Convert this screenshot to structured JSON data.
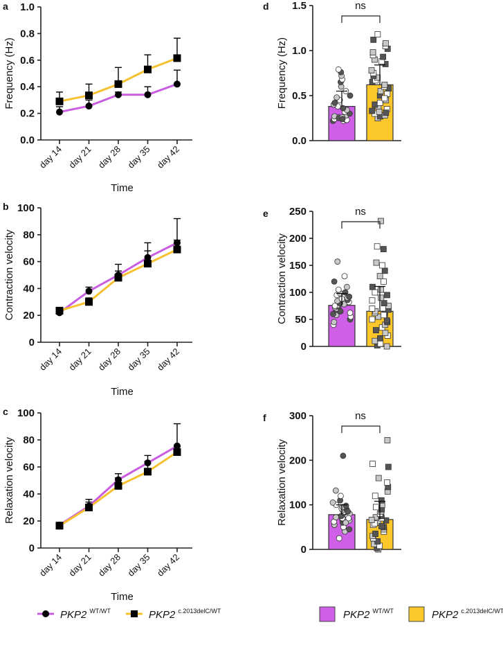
{
  "colors": {
    "wt": "#c95de0",
    "mut": "#f5c12e",
    "wt_fill": "#cf5fe6",
    "mut_fill": "#fcc72a",
    "white_pt": "#ffffff",
    "light_pt": "#c8c8c8",
    "dark_pt": "#555555"
  },
  "legend": {
    "wt_name": "PKP2",
    "wt_sup": "WT/WT",
    "mut_name": "PKP2",
    "mut_sup": "c.2013delC/WT"
  },
  "chart_data": [
    {
      "id": "a",
      "type": "line",
      "panel_label": "a",
      "xlabel": "Time",
      "ylabel": "Frequency (Hz)",
      "categories": [
        "day 14",
        "day 21",
        "day 28",
        "day 35",
        "day 42"
      ],
      "ylim": [
        0,
        1.0
      ],
      "yticks": [
        "0.0",
        "0.2",
        "0.4",
        "0.6",
        "0.8",
        "1.0"
      ],
      "ytick_values": [
        0,
        0.2,
        0.4,
        0.6,
        0.8,
        1.0
      ],
      "series": [
        {
          "name": "PKP2 WT/WT",
          "marker": "circle",
          "values": [
            0.21,
            0.255,
            0.34,
            0.34,
            0.42
          ],
          "err_upper": [
            0.25,
            0.3,
            0.36,
            0.4,
            0.525
          ]
        },
        {
          "name": "PKP2 c.2013delC/WT",
          "marker": "square",
          "values": [
            0.29,
            0.335,
            0.42,
            0.53,
            0.615
          ],
          "err_upper": [
            0.36,
            0.42,
            0.545,
            0.64,
            0.765
          ]
        }
      ]
    },
    {
      "id": "b",
      "type": "line",
      "panel_label": "b",
      "xlabel": "Time",
      "ylabel": "Contraction velocity",
      "categories": [
        "day 14",
        "day 21",
        "day 28",
        "day 35",
        "day 42"
      ],
      "ylim": [
        0,
        100
      ],
      "yticks": [
        "0",
        "20",
        "40",
        "60",
        "80",
        "100"
      ],
      "ytick_values": [
        0,
        20,
        40,
        60,
        80,
        100
      ],
      "series": [
        {
          "name": "PKP2 WT/WT",
          "marker": "circle",
          "values": [
            22,
            38,
            50,
            63,
            74
          ],
          "err_upper": [
            24,
            41,
            58,
            74,
            92
          ]
        },
        {
          "name": "PKP2 c.2013delC/WT",
          "marker": "square",
          "values": [
            23.5,
            30,
            48,
            58.5,
            69
          ],
          "err_upper": [
            25,
            33,
            53,
            68,
            76
          ]
        }
      ]
    },
    {
      "id": "c",
      "type": "line",
      "panel_label": "c",
      "xlabel": "Time",
      "ylabel": "Relaxation velocity",
      "categories": [
        "day 14",
        "day 21",
        "day 28",
        "day 35",
        "day 42"
      ],
      "ylim": [
        0,
        100
      ],
      "yticks": [
        "0",
        "20",
        "40",
        "60",
        "80",
        "100"
      ],
      "ytick_values": [
        0,
        20,
        40,
        60,
        80,
        100
      ],
      "series": [
        {
          "name": "PKP2 WT/WT",
          "marker": "circle",
          "values": [
            17,
            31,
            50.5,
            63,
            75.5
          ],
          "err_upper": [
            19,
            36,
            55,
            68.5,
            92
          ]
        },
        {
          "name": "PKP2 c.2013delC/WT",
          "marker": "square",
          "values": [
            16.5,
            30,
            46,
            56.5,
            71
          ],
          "err_upper": [
            18,
            34,
            52,
            64,
            75
          ]
        }
      ]
    },
    {
      "id": "d",
      "type": "bar",
      "panel_label": "d",
      "ylabel": "Frequency (Hz)",
      "annotation": "ns",
      "ylim": [
        0,
        1.5
      ],
      "yticks": [
        "0.0",
        "0.5",
        "1.0",
        "1.5"
      ],
      "ytick_values": [
        0,
        0.5,
        1.0,
        1.5
      ],
      "groups": [
        {
          "name": "PKP2 WT/WT",
          "mean": 0.38,
          "sd_upper": 0.55,
          "marker": "circle",
          "points": [
            0.22,
            0.23,
            0.24,
            0.25,
            0.26,
            0.22,
            0.24,
            0.27,
            0.25,
            0.23,
            0.28,
            0.3,
            0.32,
            0.34,
            0.36,
            0.38,
            0.4,
            0.42,
            0.45,
            0.48,
            0.5,
            0.55,
            0.6,
            0.65,
            0.68,
            0.72,
            0.76,
            0.79,
            0.26,
            0.24
          ]
        },
        {
          "name": "PKP2 c.2013delC/WT",
          "mean": 0.62,
          "sd_upper": 0.84,
          "marker": "square",
          "points": [
            0.25,
            0.27,
            0.3,
            0.32,
            0.33,
            0.35,
            0.38,
            0.4,
            0.42,
            0.45,
            0.5,
            0.52,
            0.55,
            0.58,
            0.6,
            0.62,
            0.65,
            0.67,
            0.7,
            0.72,
            0.75,
            0.78,
            0.85,
            0.88,
            0.9,
            0.93,
            0.95,
            0.98,
            1.02,
            1.05,
            1.08,
            1.12,
            1.18,
            0.28,
            0.31,
            0.47
          ]
        }
      ]
    },
    {
      "id": "e",
      "type": "bar",
      "panel_label": "e",
      "ylabel": "Contraction velocity",
      "annotation": "ns",
      "ylim": [
        0,
        250
      ],
      "yticks": [
        "0",
        "50",
        "100",
        "150",
        "200",
        "250"
      ],
      "ytick_values": [
        0,
        50,
        100,
        150,
        200,
        250
      ],
      "groups": [
        {
          "name": "PKP2 WT/WT",
          "mean": 76,
          "sd_upper": 98,
          "marker": "circle",
          "points": [
            40,
            45,
            50,
            55,
            58,
            60,
            62,
            65,
            68,
            70,
            72,
            74,
            76,
            78,
            80,
            82,
            84,
            86,
            88,
            90,
            92,
            95,
            98,
            100,
            105,
            110,
            120,
            130,
            157,
            65,
            75
          ]
        },
        {
          "name": "PKP2 c.2013delC/WT",
          "mean": 65,
          "sd_upper": 111,
          "marker": "square",
          "points": [
            0,
            2,
            5,
            10,
            15,
            20,
            25,
            30,
            35,
            40,
            45,
            50,
            55,
            60,
            62,
            65,
            68,
            70,
            75,
            80,
            85,
            90,
            95,
            100,
            105,
            110,
            120,
            130,
            140,
            150,
            155,
            180,
            185,
            232,
            48,
            58
          ]
        }
      ]
    },
    {
      "id": "f",
      "type": "bar",
      "panel_label": "f",
      "ylabel": "Relaxation velocity",
      "annotation": "ns",
      "ylim": [
        0,
        300
      ],
      "yticks": [
        "0",
        "100",
        "200",
        "300"
      ],
      "ytick_values": [
        0,
        100,
        200,
        300
      ],
      "groups": [
        {
          "name": "PKP2 WT/WT",
          "mean": 78,
          "sd_upper": 100,
          "marker": "circle",
          "points": [
            25,
            40,
            45,
            50,
            55,
            60,
            62,
            65,
            68,
            70,
            72,
            75,
            78,
            80,
            82,
            85,
            88,
            90,
            92,
            95,
            98,
            100,
            105,
            110,
            120,
            132,
            210,
            70,
            60,
            85
          ]
        },
        {
          "name": "PKP2 c.2013delC/WT",
          "mean": 67,
          "sd_upper": 108,
          "marker": "square",
          "points": [
            0,
            3,
            8,
            12,
            18,
            25,
            30,
            35,
            40,
            45,
            50,
            55,
            60,
            65,
            70,
            72,
            75,
            80,
            85,
            90,
            95,
            100,
            110,
            120,
            130,
            140,
            150,
            160,
            185,
            192,
            245,
            52,
            58,
            66
          ]
        }
      ]
    }
  ]
}
